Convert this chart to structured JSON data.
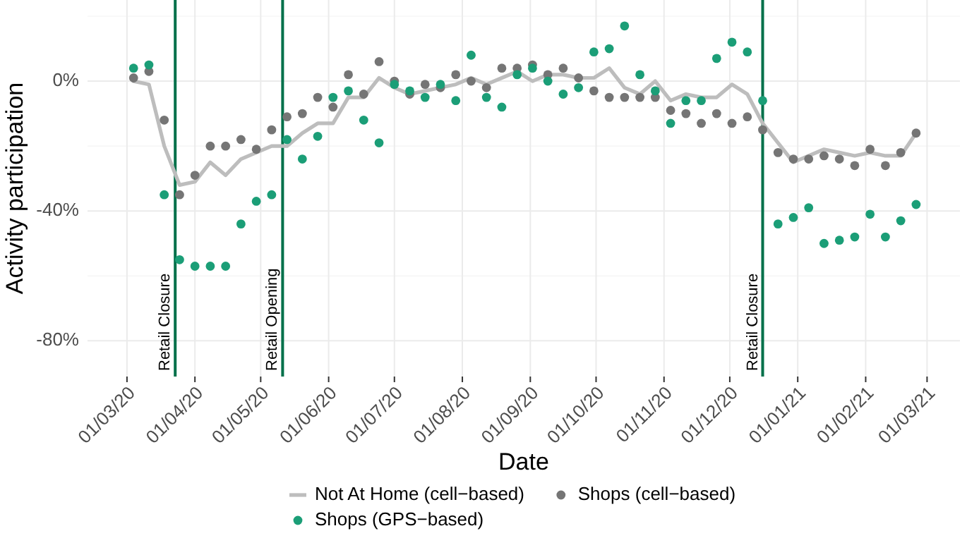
{
  "chart_data": {
    "type": "line",
    "xlabel": "Date",
    "ylabel": "Activity participation",
    "x": [
      "2020-03-04",
      "2020-03-11",
      "2020-03-18",
      "2020-03-25",
      "2020-04-01",
      "2020-04-08",
      "2020-04-15",
      "2020-04-22",
      "2020-04-29",
      "2020-05-06",
      "2020-05-13",
      "2020-05-20",
      "2020-05-27",
      "2020-06-03",
      "2020-06-10",
      "2020-06-17",
      "2020-06-24",
      "2020-07-01",
      "2020-07-08",
      "2020-07-15",
      "2020-07-22",
      "2020-07-29",
      "2020-08-05",
      "2020-08-12",
      "2020-08-19",
      "2020-08-26",
      "2020-09-02",
      "2020-09-09",
      "2020-09-16",
      "2020-09-23",
      "2020-09-30",
      "2020-10-07",
      "2020-10-14",
      "2020-10-21",
      "2020-10-28",
      "2020-11-04",
      "2020-11-11",
      "2020-11-18",
      "2020-11-25",
      "2020-12-02",
      "2020-12-09",
      "2020-12-16",
      "2020-12-23",
      "2020-12-30",
      "2021-01-06",
      "2021-01-13",
      "2021-01-20",
      "2021-01-27",
      "2021-02-03",
      "2021-02-10",
      "2021-02-17",
      "2021-02-24"
    ],
    "series": [
      {
        "name": "Not At Home (cell−based)",
        "color": "#bdbdbd",
        "values": [
          0,
          -1,
          -20,
          -32,
          -31,
          -25,
          -29,
          -24,
          -22,
          -20,
          -20,
          -16,
          -13,
          -13,
          -5,
          -5,
          1,
          -2,
          -4,
          -3,
          -2,
          -1,
          1,
          -1,
          1,
          3,
          0,
          2,
          2,
          1,
          1,
          4,
          -2,
          -4,
          0,
          -6,
          -4,
          -5,
          -5,
          -1,
          -4,
          -13,
          -19,
          -25,
          -23,
          -21,
          -22,
          -23,
          -22,
          -23,
          -23,
          -16
        ]
      },
      {
        "name": "Shops (cell−based)",
        "type": "scatter",
        "color": "#757575",
        "marker": "circle",
        "values": [
          1,
          3,
          -12,
          -35,
          -29,
          -20,
          -20,
          -18,
          -21,
          -15,
          -11,
          -10,
          -5,
          -8,
          2,
          -4,
          6,
          0,
          -4,
          -1,
          -2,
          2,
          0,
          -2,
          4,
          4,
          5,
          2,
          4,
          1,
          -3,
          -5,
          -5,
          -5,
          -5,
          -9,
          -10,
          -13,
          -10,
          -13,
          -11,
          -15,
          -22,
          -24,
          -24,
          -23,
          -24,
          -26,
          -21,
          -26,
          -22,
          -16
        ]
      },
      {
        "name": "Shops (GPS−based)",
        "type": "scatter",
        "color": "#1b9e77",
        "marker": "circle",
        "values": [
          4,
          5,
          -35,
          -55,
          -57,
          -57,
          -57,
          -44,
          -37,
          -35,
          -18,
          -24,
          -17,
          -5,
          -3,
          -12,
          -19,
          -1,
          -3,
          -5,
          -1,
          -6,
          8,
          -5,
          -8,
          2,
          4,
          0,
          -4,
          -2,
          9,
          10,
          17,
          2,
          -3,
          -13,
          -6,
          -6,
          7,
          12,
          9,
          -6,
          -44,
          -42,
          -39,
          -50,
          -49,
          -48,
          -41,
          -48,
          -43,
          -38
        ]
      }
    ],
    "xlim": [
      "2020-02-12",
      "2021-03-16"
    ],
    "xticks": [
      {
        "value": "2020-03-01",
        "label": "01/03/20"
      },
      {
        "value": "2020-04-01",
        "label": "01/04/20"
      },
      {
        "value": "2020-05-01",
        "label": "01/05/20"
      },
      {
        "value": "2020-06-01",
        "label": "01/06/20"
      },
      {
        "value": "2020-07-01",
        "label": "01/07/20"
      },
      {
        "value": "2020-08-01",
        "label": "01/08/20"
      },
      {
        "value": "2020-09-01",
        "label": "01/09/20"
      },
      {
        "value": "2020-10-01",
        "label": "01/10/20"
      },
      {
        "value": "2020-11-01",
        "label": "01/11/20"
      },
      {
        "value": "2020-12-01",
        "label": "01/12/20"
      },
      {
        "value": "2021-01-01",
        "label": "01/01/21"
      },
      {
        "value": "2021-02-01",
        "label": "01/02/21"
      },
      {
        "value": "2021-03-01",
        "label": "01/03/21"
      }
    ],
    "ylim": [
      -91,
      25
    ],
    "yticks": [
      {
        "value": -80,
        "label": "-80%"
      },
      {
        "value": -60,
        "label": null
      },
      {
        "value": -40,
        "label": "-40%"
      },
      {
        "value": -20,
        "label": null
      },
      {
        "value": 0,
        "label": "0%"
      },
      {
        "value": 20,
        "label": null
      }
    ],
    "ref_lines": [
      {
        "axis": "x",
        "value": "2020-03-23",
        "label": "Retail Closure",
        "color": "#00704a"
      },
      {
        "axis": "x",
        "value": "2020-05-11",
        "label": "Retail Opening",
        "color": "#00704a"
      },
      {
        "axis": "x",
        "value": "2020-12-16",
        "label": "Retail Closure",
        "color": "#00704a"
      }
    ],
    "grid": true,
    "legend": "bottom"
  }
}
